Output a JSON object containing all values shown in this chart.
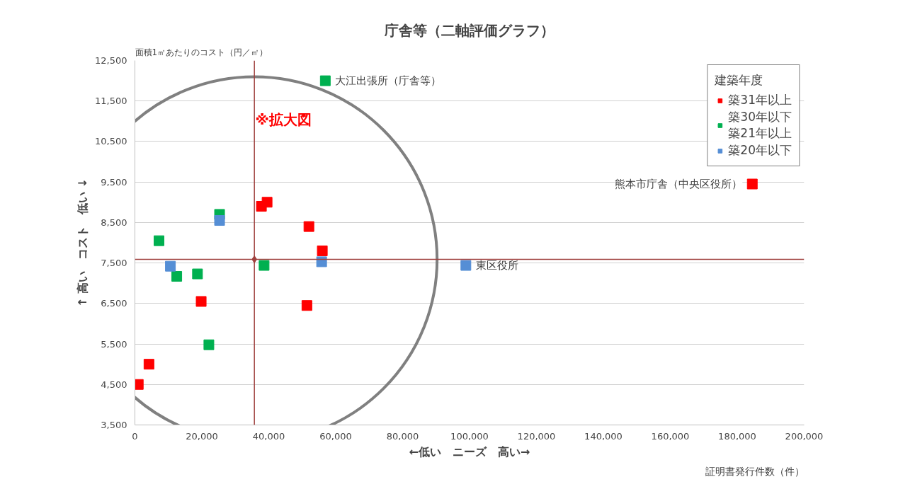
{
  "chart_data": {
    "type": "scatter",
    "title": "庁舎等（二軸評価グラフ）",
    "xlabel": "←低い　ニーズ　高い→",
    "ylabel": "↑ 高い　コスト　低い ↓",
    "legend_title": "建築年度",
    "xlim": [
      0,
      200000
    ],
    "ylim": [
      3500,
      12500
    ],
    "xticks": [
      {
        "value": 0,
        "label": "0"
      },
      {
        "value": 20000,
        "label": "20,000"
      },
      {
        "value": 40000,
        "label": "40,000"
      },
      {
        "value": 60000,
        "label": "60,000"
      },
      {
        "value": 80000,
        "label": "80,000"
      },
      {
        "value": 100000,
        "label": "100,000"
      },
      {
        "value": 120000,
        "label": "120,000"
      },
      {
        "value": 140000,
        "label": "140,000"
      },
      {
        "value": 160000,
        "label": "160,000"
      },
      {
        "value": 180000,
        "label": "180,000"
      },
      {
        "value": 200000,
        "label": "200,000"
      }
    ],
    "yticks": [
      {
        "value": 3500,
        "label": "3,500"
      },
      {
        "value": 4500,
        "label": "4,500"
      },
      {
        "value": 5500,
        "label": "5,500"
      },
      {
        "value": 6500,
        "label": "6,500"
      },
      {
        "value": 7500,
        "label": "7,500"
      },
      {
        "value": 8500,
        "label": "8,500"
      },
      {
        "value": 9500,
        "label": "9,500"
      },
      {
        "value": 10500,
        "label": "10,500"
      },
      {
        "value": 11500,
        "label": "11,500"
      },
      {
        "value": 12500,
        "label": "12,500"
      }
    ],
    "grid": "y",
    "legend": "top right",
    "marker": "square",
    "series": [
      {
        "name": "築31年以上",
        "color": "#ff0000",
        "x": [
          1000,
          4200,
          19800,
          37800,
          39500,
          52000,
          56000,
          51400,
          184500
        ],
        "values": [
          4500,
          5000,
          6550,
          8900,
          9000,
          8400,
          7800,
          6450,
          9450
        ]
      },
      {
        "name": "築30年以下築21年以上",
        "color": "#00b050",
        "x": [
          56900,
          7200,
          25300,
          12500,
          18700,
          38600,
          22100
        ],
        "values": [
          12000,
          8050,
          8700,
          7170,
          7230,
          7440,
          5480
        ]
      },
      {
        "name": "築20年以下",
        "color": "#558ed5",
        "x": [
          10600,
          25300,
          55800,
          98900
        ],
        "values": [
          7420,
          8550,
          7530,
          7440
        ]
      },
      {
        "color": "#a0413f",
        "marker": "diamond",
        "x": [
          35700
        ],
        "values": [
          7590
        ]
      }
    ],
    "ref_lines": [
      {
        "axis": "x",
        "value": 35700,
        "color": "#a0413f"
      },
      {
        "axis": "y",
        "value": 7590,
        "color": "#a0413f"
      }
    ],
    "annotations": [
      {
        "text": "大江出張所（庁舎等）",
        "x": 56900,
        "y": 12000
      },
      {
        "text": "熊本市庁舎（中央区役所）",
        "x": 184500,
        "y": 9450
      },
      {
        "text": "東区役所",
        "x": 98900,
        "y": 7440
      },
      "面積1㎡あたりのコスト（円／㎡）",
      "証明書発行件数（件）",
      "※拡大図"
    ]
  }
}
